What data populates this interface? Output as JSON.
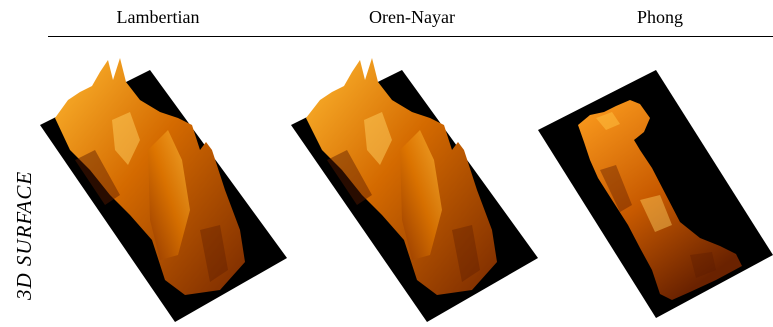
{
  "figure": {
    "columns": [
      {
        "label": "Lambertian"
      },
      {
        "label": "Oren-Nayar"
      },
      {
        "label": "Phong"
      }
    ],
    "row_label": "3D SURFACE",
    "colors": {
      "background_plate": "#000000",
      "surface_dark": "#7a2a00",
      "surface_mid": "#d46a00",
      "surface_bright": "#ffb830"
    }
  }
}
